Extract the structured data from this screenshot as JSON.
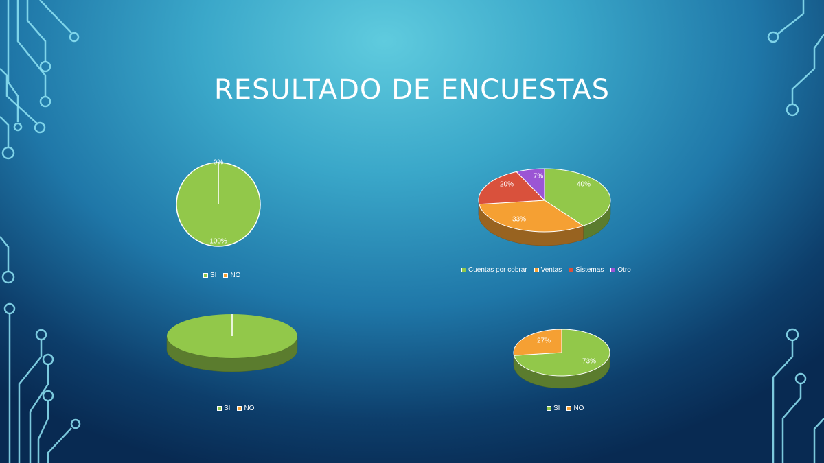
{
  "slide": {
    "title": "RESULTADO DE ENCUESTAS"
  },
  "colors": {
    "green": "#92c84a",
    "orange": "#f5a033",
    "red": "#d9513c",
    "purple": "#9b55d4"
  },
  "chart_data": [
    {
      "type": "pie",
      "categories": [
        "SI",
        "NO"
      ],
      "values": [
        100,
        0
      ],
      "data_labels": [
        "100%",
        "0%"
      ],
      "colors": [
        "#92c84a",
        "#f5a033"
      ],
      "style": "2d",
      "legend": "bottom"
    },
    {
      "type": "pie",
      "categories": [
        "Cuentas por cobrar",
        "Ventas",
        "Sistemas",
        "Otro"
      ],
      "values": [
        40,
        33,
        20,
        7
      ],
      "data_labels": [
        "40%",
        "33%",
        "20%",
        "7%"
      ],
      "colors": [
        "#92c84a",
        "#f5a033",
        "#d9513c",
        "#9b55d4"
      ],
      "style": "3d",
      "legend": "bottom"
    },
    {
      "type": "pie",
      "categories": [
        "SI",
        "NO"
      ],
      "values": [
        100,
        0
      ],
      "data_labels": [],
      "colors": [
        "#92c84a",
        "#f5a033"
      ],
      "style": "3d",
      "legend": "bottom"
    },
    {
      "type": "pie",
      "categories": [
        "SI",
        "NO"
      ],
      "values": [
        73,
        27
      ],
      "data_labels": [
        "73%",
        "27%"
      ],
      "colors": [
        "#92c84a",
        "#f5a033"
      ],
      "style": "3d",
      "legend": "bottom"
    }
  ]
}
